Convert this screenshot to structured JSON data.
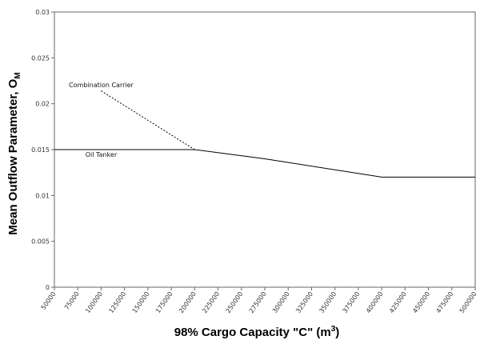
{
  "chart_data": {
    "type": "line",
    "title": "",
    "xlabel": "98% Cargo Capacity \"C\" (m",
    "xlabel_sup": "3",
    "ylabel": "Mean Outflow Parameter, O",
    "ylabel_sub": "M",
    "xlim": [
      50000,
      500000
    ],
    "ylim": [
      0,
      0.03
    ],
    "x_ticks": [
      50000,
      75000,
      100000,
      125000,
      150000,
      175000,
      200000,
      225000,
      250000,
      275000,
      300000,
      325000,
      350000,
      375000,
      400000,
      425000,
      450000,
      475000,
      500000
    ],
    "x_tick_labels": [
      "50000",
      "75000",
      "100000",
      "125000",
      "150000",
      "175000",
      "200000",
      "225000",
      "250000",
      "275000",
      "300000",
      "325000",
      "350000",
      "375000",
      "400000",
      "425000",
      "450000",
      "475000",
      "500000"
    ],
    "y_ticks": [
      0,
      0.005,
      0.01,
      0.015,
      0.02,
      0.025,
      0.03
    ],
    "y_tick_labels": [
      "0",
      "0.005",
      "0.01",
      "0.015",
      "0.02",
      "0.025",
      "0.03"
    ],
    "grid": false,
    "series": [
      {
        "name": "Oil Tanker",
        "style": "solid",
        "color": "#000000",
        "x": [
          50000,
          200000,
          275000,
          400000,
          500000
        ],
        "y": [
          0.015,
          0.015,
          0.014,
          0.012,
          0.012
        ]
      },
      {
        "name": "Combination Carrier",
        "style": "dashed",
        "color": "#000000",
        "x": [
          100000,
          200000
        ],
        "y": [
          0.0214,
          0.015
        ]
      }
    ],
    "annotations": [
      {
        "text": "Combination Carrier",
        "x": 100000,
        "y": 0.0218
      },
      {
        "text": "Oil Tanker",
        "x": 100000,
        "y": 0.0142
      }
    ]
  }
}
